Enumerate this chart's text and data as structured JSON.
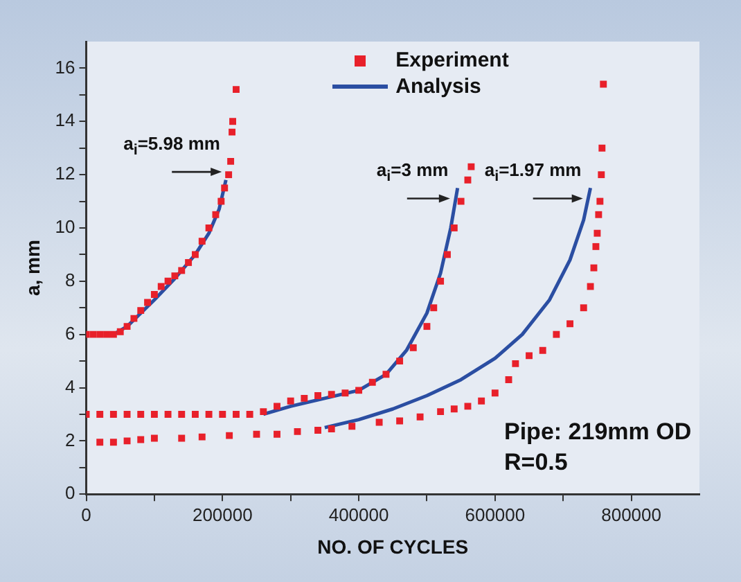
{
  "chart_data": {
    "type": "scatter",
    "xlabel": "NO. OF CYCLES",
    "ylabel": "a, mm",
    "xlim": [
      0,
      900000
    ],
    "ylim": [
      0,
      17
    ],
    "xticks": [
      0,
      {
        "value": 100000,
        "label": null
      },
      200000,
      {
        "value": 300000,
        "label": null
      },
      400000,
      {
        "value": 500000,
        "label": null
      },
      600000,
      {
        "value": 700000,
        "label": null
      },
      800000
    ],
    "yticks": [
      0,
      {
        "value": 1,
        "label": null
      },
      2,
      {
        "value": 3,
        "label": null
      },
      4,
      {
        "value": 5,
        "label": null
      },
      6,
      {
        "value": 7,
        "label": null
      },
      8,
      {
        "value": 9,
        "label": null
      },
      10,
      {
        "value": 11,
        "label": null
      },
      12,
      {
        "value": 13,
        "label": null
      },
      14,
      {
        "value": 15,
        "label": null
      },
      16
    ],
    "legend": "top",
    "grid": false,
    "series": [
      {
        "name": "Experiment",
        "marker": "square",
        "color": "#e8202a",
        "x": [
          0,
          10000,
          20000,
          30000,
          40000,
          50000,
          60000,
          70000,
          80000,
          90000,
          100000,
          110000,
          120000,
          130000,
          140000,
          150000,
          160000,
          170000,
          180000,
          190000,
          198000,
          203000,
          209000,
          212000,
          214000,
          215000,
          220000,
          0,
          20000,
          40000,
          60000,
          80000,
          100000,
          120000,
          140000,
          160000,
          180000,
          200000,
          220000,
          240000,
          260000,
          280000,
          300000,
          320000,
          340000,
          360000,
          380000,
          400000,
          420000,
          440000,
          460000,
          480000,
          500000,
          510000,
          520000,
          530000,
          540000,
          550000,
          560000,
          565000,
          20000,
          40000,
          60000,
          80000,
          100000,
          140000,
          170000,
          210000,
          250000,
          280000,
          310000,
          340000,
          360000,
          390000,
          430000,
          460000,
          490000,
          520000,
          540000,
          560000,
          580000,
          600000,
          620000,
          630000,
          650000,
          670000,
          690000,
          710000,
          730000,
          740000,
          745000,
          748000,
          750000,
          752000,
          754000,
          756000,
          757000,
          759000
        ],
        "values": [
          6,
          6,
          6,
          6,
          6,
          6.1,
          6.3,
          6.6,
          6.9,
          7.2,
          7.5,
          7.8,
          8,
          8.2,
          8.4,
          8.7,
          9,
          9.5,
          10,
          10.5,
          11,
          11.5,
          12,
          12.5,
          13.6,
          14,
          15.2,
          3,
          3,
          3,
          3,
          3,
          3,
          3,
          3,
          3,
          3,
          3,
          3,
          3,
          3.1,
          3.3,
          3.5,
          3.6,
          3.7,
          3.75,
          3.8,
          3.9,
          4.2,
          4.5,
          5,
          5.5,
          6.3,
          7,
          8,
          9,
          10,
          11,
          11.8,
          12.3,
          1.95,
          1.95,
          2,
          2.05,
          2.1,
          2.1,
          2.15,
          2.2,
          2.25,
          2.25,
          2.35,
          2.4,
          2.45,
          2.55,
          2.7,
          2.75,
          2.9,
          3.1,
          3.2,
          3.3,
          3.5,
          3.8,
          4.3,
          4.9,
          5.2,
          5.4,
          6,
          6.4,
          7,
          7.8,
          8.5,
          9.3,
          9.8,
          10.5,
          11,
          12,
          13,
          15.4
        ]
      },
      {
        "name": "Analysis",
        "type": "line",
        "marker": "none",
        "color": "#2b4ea2",
        "x": [
          40000,
          60000,
          80000,
          100000,
          130000,
          160000,
          180000,
          195000,
          205000
        ],
        "values": [
          6,
          6.3,
          6.8,
          7.3,
          8.1,
          9,
          9.8,
          10.7,
          11.8
        ]
      },
      {
        "type": "line",
        "marker": "none",
        "color": "#2b4ea2",
        "x": [
          260000,
          300000,
          350000,
          400000,
          440000,
          470000,
          500000,
          520000,
          535000,
          545000
        ],
        "values": [
          3,
          3.3,
          3.6,
          3.9,
          4.5,
          5.4,
          6.8,
          8.3,
          10,
          11.5
        ]
      },
      {
        "type": "line",
        "marker": "none",
        "color": "#2b4ea2",
        "x": [
          350000,
          400000,
          450000,
          500000,
          550000,
          600000,
          640000,
          680000,
          710000,
          730000,
          740000
        ],
        "values": [
          2.5,
          2.8,
          3.2,
          3.7,
          4.3,
          5.1,
          6,
          7.3,
          8.8,
          10.3,
          11.5
        ]
      }
    ],
    "annotations": [
      {
        "text": "a$_{i}$=5.98 mm",
        "x": 205000,
        "y": 12
      },
      {
        "text": "a$_{i}$=3 mm",
        "x": 540000,
        "y": 11
      },
      {
        "text": "a$_{i}$=1.97 mm",
        "x": 735000,
        "y": 11
      },
      "Pipe: 219mm OD",
      "R=0.5"
    ]
  }
}
